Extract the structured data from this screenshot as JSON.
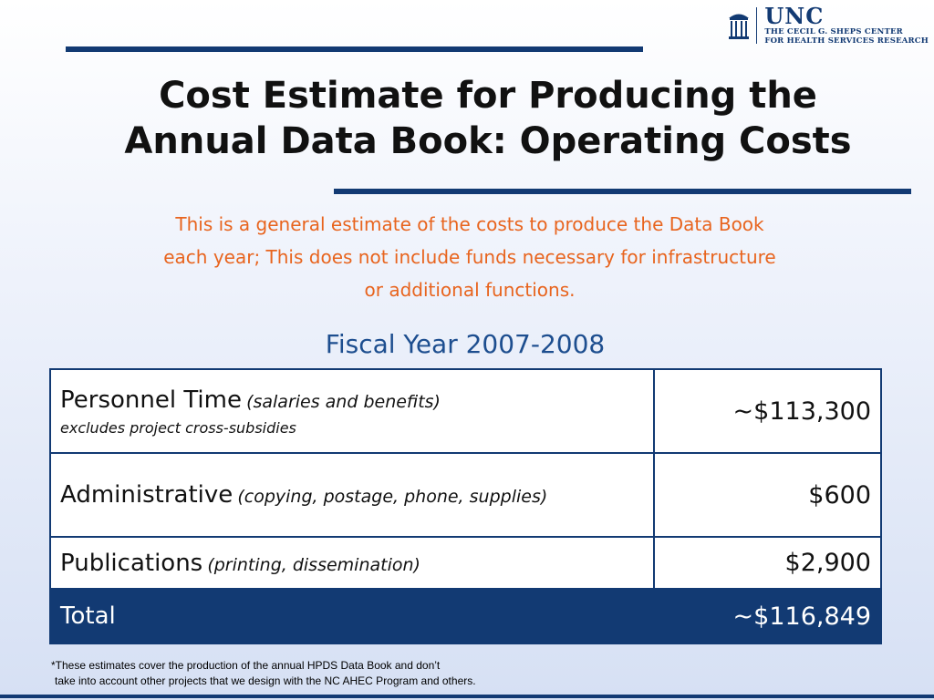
{
  "logo": {
    "name": "UNC",
    "subtitle_line1": "THE CECIL G. SHEPS CENTER",
    "subtitle_line2": "FOR HEALTH SERVICES RESEARCH"
  },
  "title_line1": "Cost Estimate for Producing the",
  "title_line2": "Annual Data Book: Operating Costs",
  "note_line1": "This is a general estimate of the costs to produce the Data Book",
  "note_line2": "each year; This does not include funds necessary for infrastructure",
  "note_line3": "or additional functions.",
  "fiscal_year": "Fiscal Year 2007-2008",
  "rows": [
    {
      "label": "Personnel Time",
      "detail": "(salaries and benefits)",
      "subnote": "excludes project cross-subsidies",
      "amount": "~$113,300"
    },
    {
      "label": "Administrative",
      "detail": "(copying, postage, phone, supplies)",
      "amount": "$600"
    },
    {
      "label": "Publications",
      "detail": "(printing, dissemination)",
      "amount": "$2,900"
    }
  ],
  "total": {
    "label": "Total",
    "amount": "~$116,849"
  },
  "footnote_line1": "*These estimates cover the production of the annual HPDS Data Book and don’t",
  "footnote_line2": "take into account other projects that we design with the NC AHEC Program and others.",
  "colors": {
    "navy": "#123a73",
    "orange": "#e8641e",
    "heading_blue": "#1d4e8f"
  }
}
